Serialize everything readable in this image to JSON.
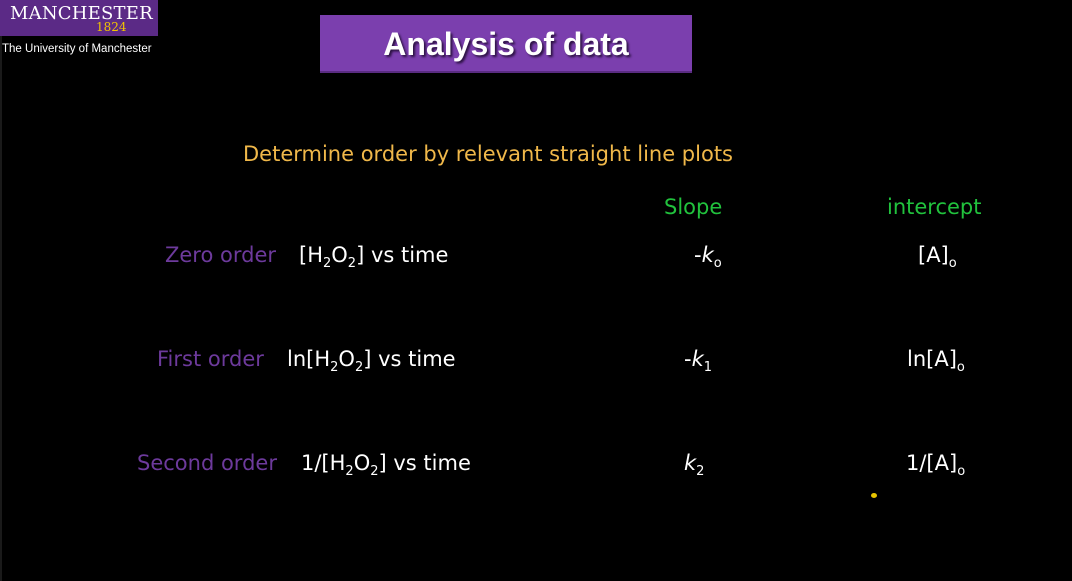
{
  "logo": {
    "wordmark": "MANCHESTER",
    "year": "1824",
    "university": "The University of Manchester",
    "brand_color": "#5b2a86"
  },
  "title": "Analysis of data",
  "subtitle": "Determine order by relevant straight line plots",
  "columns": {
    "slope": "Slope",
    "intercept": "intercept"
  },
  "rows": [
    {
      "order": "Zero order",
      "plot_prefix": "[H",
      "plot_mid": "O",
      "plot_suffix": "] vs time",
      "h_sub": "2",
      "o_sub": "2",
      "slope_sign": "-",
      "slope_k": "k",
      "slope_sub": "o",
      "intercept_main": "[A]",
      "intercept_sub": "o"
    },
    {
      "order": "First order",
      "plot_prefix": "ln[H",
      "plot_mid": "O",
      "plot_suffix": "] vs time",
      "h_sub": "2",
      "o_sub": "2",
      "slope_sign": "-",
      "slope_k": "k",
      "slope_sub": "1",
      "intercept_main": "ln[A]",
      "intercept_sub": "o"
    },
    {
      "order": "Second order",
      "plot_prefix": "1/[H",
      "plot_mid": "O",
      "plot_suffix": "] vs time",
      "h_sub": "2",
      "o_sub": "2",
      "slope_sign": "",
      "slope_k": "k",
      "slope_sub": "2",
      "intercept_main": "1/[A]",
      "intercept_sub": "o"
    }
  ],
  "colors": {
    "background": "#000000",
    "title_banner": "#7b3fae",
    "subtitle": "#f0b84a",
    "column_heads": "#21c23d",
    "order_labels": "#6d3a9c",
    "expressions": "#ffffff"
  }
}
